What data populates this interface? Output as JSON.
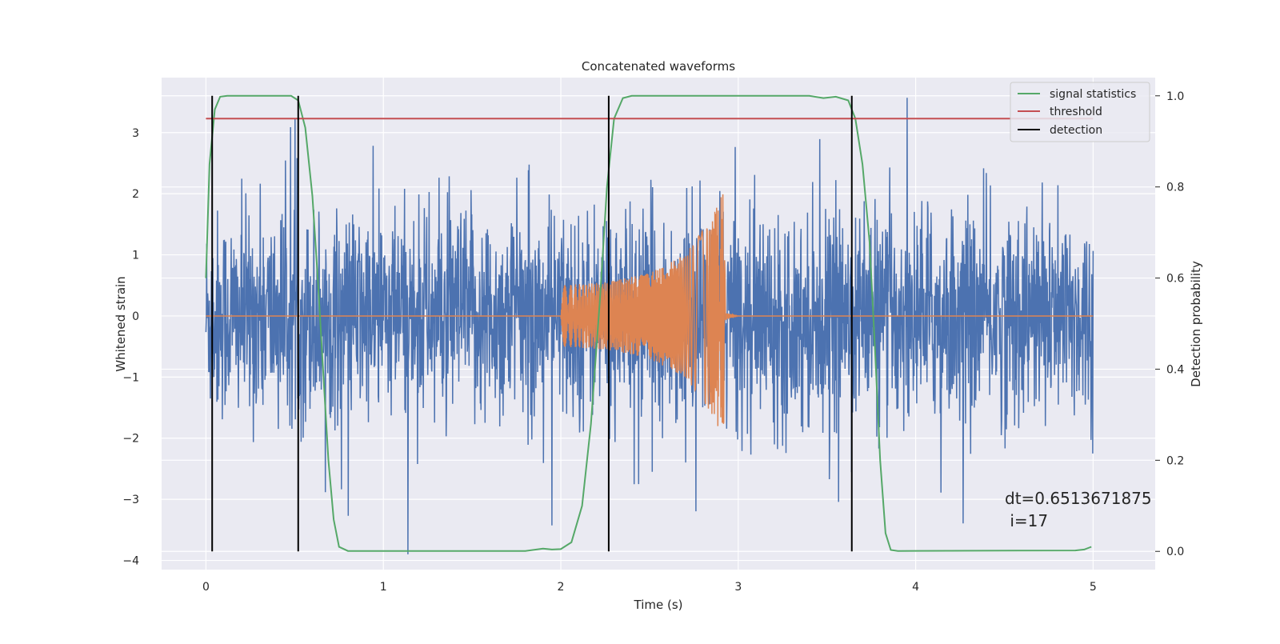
{
  "chart_data": {
    "type": "line",
    "title": "Concatenated waveforms",
    "xlabel": "Time (s)",
    "ylabel_left": "Whitened strain",
    "ylabel_right": "Detection probability",
    "xlim": [
      -0.25,
      5.35
    ],
    "ylim_left": [
      -4.15,
      3.9
    ],
    "ylim_right": [
      -0.04,
      1.04
    ],
    "xticks": [
      0,
      1,
      2,
      3,
      4,
      5
    ],
    "xtick_labels": [
      "0",
      "1",
      "2",
      "3",
      "4",
      "5"
    ],
    "yticks_left": [
      -4,
      -3,
      -2,
      -1,
      0,
      1,
      2,
      3
    ],
    "ytick_labels_left": [
      "−4",
      "−3",
      "−2",
      "−1",
      "0",
      "1",
      "2",
      "3"
    ],
    "yticks_right": [
      0.0,
      0.2,
      0.4,
      0.6,
      0.8,
      1.0
    ],
    "ytick_labels_right": [
      "0.0",
      "0.2",
      "0.4",
      "0.6",
      "0.8",
      "1.0"
    ],
    "grid": true,
    "legend_position": "top-right",
    "series": [
      {
        "name": "",
        "axis": "left",
        "color": "#4c72b0",
        "kind": "noise",
        "x_range": [
          0,
          5
        ],
        "amplitude_envelope": [
          -3.9,
          3.57
        ]
      },
      {
        "name": "",
        "axis": "left",
        "color": "#dd8452",
        "kind": "chirp",
        "points": [
          [
            0,
            0
          ],
          [
            1.99,
            0
          ],
          [
            2.0,
            0.5
          ],
          [
            2.25,
            0.55
          ],
          [
            2.5,
            0.7
          ],
          [
            2.7,
            1.0
          ],
          [
            2.85,
            1.6
          ],
          [
            2.92,
            2.05
          ],
          [
            2.93,
            0.05
          ],
          [
            3.0,
            0
          ],
          [
            5,
            0
          ]
        ]
      },
      {
        "name": "signal statistics",
        "axis": "right",
        "color": "#55a868",
        "points": [
          [
            0,
            0.6
          ],
          [
            0.02,
            0.85
          ],
          [
            0.05,
            0.97
          ],
          [
            0.08,
            0.998
          ],
          [
            0.12,
            1.0
          ],
          [
            0.48,
            1.0
          ],
          [
            0.52,
            0.99
          ],
          [
            0.56,
            0.93
          ],
          [
            0.6,
            0.78
          ],
          [
            0.63,
            0.6
          ],
          [
            0.66,
            0.4
          ],
          [
            0.69,
            0.2
          ],
          [
            0.72,
            0.07
          ],
          [
            0.75,
            0.01
          ],
          [
            0.8,
            0.001
          ],
          [
            1.8,
            0.001
          ],
          [
            1.9,
            0.006
          ],
          [
            1.95,
            0.004
          ],
          [
            2.0,
            0.005
          ],
          [
            2.06,
            0.02
          ],
          [
            2.12,
            0.1
          ],
          [
            2.17,
            0.28
          ],
          [
            2.22,
            0.55
          ],
          [
            2.26,
            0.8
          ],
          [
            2.3,
            0.95
          ],
          [
            2.35,
            0.995
          ],
          [
            2.4,
            1.0
          ],
          [
            3.4,
            1.0
          ],
          [
            3.48,
            0.995
          ],
          [
            3.55,
            0.998
          ],
          [
            3.62,
            0.99
          ],
          [
            3.66,
            0.95
          ],
          [
            3.7,
            0.85
          ],
          [
            3.74,
            0.68
          ],
          [
            3.77,
            0.45
          ],
          [
            3.8,
            0.2
          ],
          [
            3.83,
            0.04
          ],
          [
            3.86,
            0.003
          ],
          [
            3.9,
            0.001
          ],
          [
            4.9,
            0.002
          ],
          [
            4.95,
            0.004
          ],
          [
            4.99,
            0.01
          ]
        ]
      },
      {
        "name": "threshold",
        "axis": "right",
        "color": "#c44e52",
        "points": [
          [
            0,
            0.95
          ],
          [
            5,
            0.95
          ]
        ]
      },
      {
        "name": "detection",
        "axis": "right",
        "color": "#000000",
        "kind": "vlines",
        "x": [
          0.035,
          0.52,
          2.27,
          3.64
        ],
        "y_range": [
          0,
          1
        ]
      }
    ],
    "annotation": {
      "line1": "dt=0.6513671875",
      "line2": " i=17"
    }
  }
}
